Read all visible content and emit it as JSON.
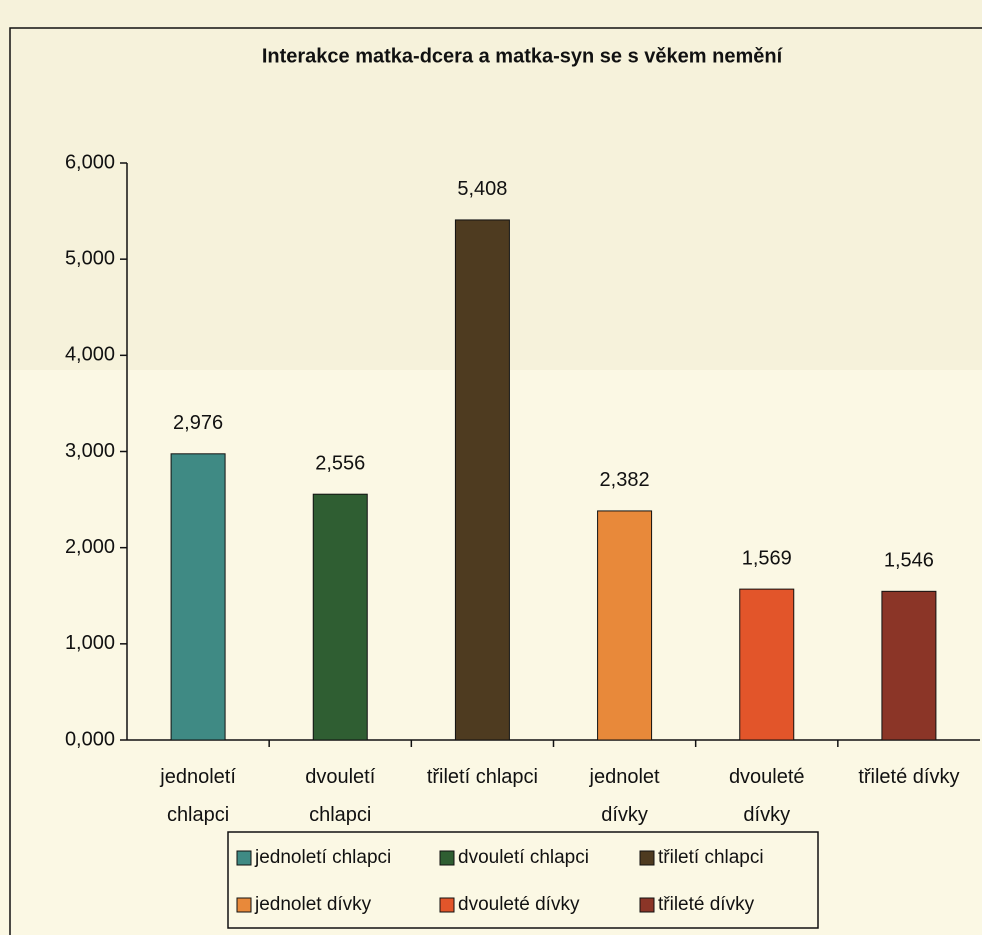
{
  "chart_data": {
    "type": "bar",
    "title": "Interakce matka-dcera a matka-syn se s věkem nemění",
    "categories": [
      "jednoletí\nchlapci",
      "dvouletí\nchlapci",
      "třiletí chlapci",
      "jednolet\ndívky",
      "dvouleté\ndívky",
      "třileté dívky"
    ],
    "values": [
      2.976,
      2.556,
      5.408,
      2.382,
      1.569,
      1.546
    ],
    "value_labels": [
      "2,976",
      "2,556",
      "5,408",
      "2,382",
      "1,569",
      "1,546"
    ],
    "colors": [
      "#3f8a84",
      "#2f5e32",
      "#4e3b20",
      "#e8893a",
      "#e2552a",
      "#8b3527"
    ],
    "legend": [
      "jednoletí chlapci",
      "dvouletí chlapci",
      "třiletí chlapci",
      "jednolet dívky",
      "dvouleté dívky",
      "třileté dívky"
    ],
    "ylim": [
      0,
      6
    ],
    "yticks": [
      {
        "value": 0,
        "label": "0,000"
      },
      {
        "value": 1,
        "label": "1,000"
      },
      {
        "value": 2,
        "label": "2,000"
      },
      {
        "value": 3,
        "label": "3,000"
      },
      {
        "value": 4,
        "label": "4,000"
      },
      {
        "value": 5,
        "label": "5,000"
      },
      {
        "value": 6,
        "label": "6,000"
      }
    ],
    "grid": false
  }
}
